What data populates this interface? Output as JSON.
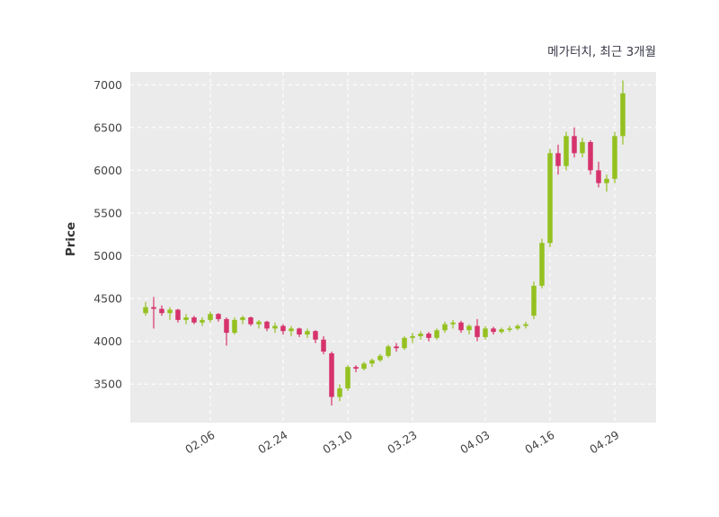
{
  "chart_data": {
    "type": "candlestick",
    "title": "메가터치, 최근 3개월",
    "ylabel": "Price",
    "legend_position": "none",
    "grid": "dashed",
    "y_ticks": [
      3500,
      4000,
      4500,
      5000,
      5500,
      6000,
      6500,
      7000
    ],
    "ylim": [
      3050,
      7150
    ],
    "x_ticks": [
      {
        "label": "02.06",
        "index": 8
      },
      {
        "label": "02.24",
        "index": 17
      },
      {
        "label": "03.10",
        "index": 25
      },
      {
        "label": "03.23",
        "index": 33
      },
      {
        "label": "04.03",
        "index": 42
      },
      {
        "label": "04.16",
        "index": 50
      },
      {
        "label": "04.29",
        "index": 58
      }
    ],
    "colors": {
      "up": "#94c120",
      "down": "#d6336c",
      "plot_bg": "#ebebeb",
      "grid": "#ffffff",
      "tick_text": "#444444",
      "title_text": "#3a3a4a"
    },
    "candles_format": [
      "open",
      "high",
      "low",
      "close"
    ],
    "candles": [
      [
        4330,
        4460,
        4300,
        4400
      ],
      [
        4400,
        4520,
        4150,
        4380
      ],
      [
        4380,
        4420,
        4300,
        4330
      ],
      [
        4330,
        4400,
        4250,
        4370
      ],
      [
        4370,
        4380,
        4220,
        4250
      ],
      [
        4250,
        4320,
        4200,
        4280
      ],
      [
        4280,
        4300,
        4200,
        4220
      ],
      [
        4220,
        4280,
        4180,
        4250
      ],
      [
        4250,
        4350,
        4220,
        4320
      ],
      [
        4320,
        4330,
        4230,
        4260
      ],
      [
        4260,
        4280,
        3950,
        4100
      ],
      [
        4100,
        4280,
        4080,
        4250
      ],
      [
        4250,
        4300,
        4200,
        4280
      ],
      [
        4280,
        4290,
        4180,
        4200
      ],
      [
        4200,
        4250,
        4150,
        4230
      ],
      [
        4230,
        4240,
        4120,
        4150
      ],
      [
        4150,
        4220,
        4100,
        4180
      ],
      [
        4180,
        4200,
        4080,
        4120
      ],
      [
        4120,
        4180,
        4060,
        4150
      ],
      [
        4150,
        4160,
        4050,
        4080
      ],
      [
        4080,
        4150,
        4040,
        4120
      ],
      [
        4120,
        4130,
        3980,
        4020
      ],
      [
        4020,
        4060,
        3850,
        3880
      ],
      [
        3860,
        3880,
        3250,
        3350
      ],
      [
        3350,
        3500,
        3300,
        3450
      ],
      [
        3450,
        3720,
        3420,
        3700
      ],
      [
        3700,
        3720,
        3640,
        3680
      ],
      [
        3680,
        3760,
        3660,
        3740
      ],
      [
        3740,
        3800,
        3700,
        3780
      ],
      [
        3780,
        3850,
        3760,
        3830
      ],
      [
        3830,
        3960,
        3810,
        3940
      ],
      [
        3940,
        3980,
        3880,
        3920
      ],
      [
        3920,
        4060,
        3900,
        4040
      ],
      [
        4040,
        4100,
        3980,
        4060
      ],
      [
        4060,
        4120,
        4020,
        4090
      ],
      [
        4090,
        4110,
        4000,
        4040
      ],
      [
        4040,
        4150,
        4020,
        4130
      ],
      [
        4130,
        4230,
        4100,
        4200
      ],
      [
        4200,
        4250,
        4150,
        4220
      ],
      [
        4220,
        4240,
        4100,
        4130
      ],
      [
        4130,
        4200,
        4080,
        4180
      ],
      [
        4180,
        4260,
        4000,
        4050
      ],
      [
        4050,
        4180,
        4020,
        4150
      ],
      [
        4150,
        4170,
        4080,
        4110
      ],
      [
        4110,
        4160,
        4090,
        4140
      ],
      [
        4140,
        4180,
        4110,
        4150
      ],
      [
        4150,
        4200,
        4130,
        4180
      ],
      [
        4180,
        4230,
        4150,
        4200
      ],
      [
        4300,
        4700,
        4260,
        4650
      ],
      [
        4650,
        5200,
        4620,
        5150
      ],
      [
        5150,
        6250,
        5100,
        6200
      ],
      [
        6200,
        6300,
        5950,
        6050
      ],
      [
        6050,
        6450,
        6000,
        6400
      ],
      [
        6400,
        6500,
        6150,
        6200
      ],
      [
        6200,
        6380,
        6150,
        6330
      ],
      [
        6330,
        6350,
        5950,
        6000
      ],
      [
        6000,
        6100,
        5800,
        5850
      ],
      [
        5850,
        5950,
        5750,
        5900
      ],
      [
        5900,
        6450,
        5850,
        6400
      ],
      [
        6400,
        7050,
        6300,
        6900
      ]
    ]
  }
}
